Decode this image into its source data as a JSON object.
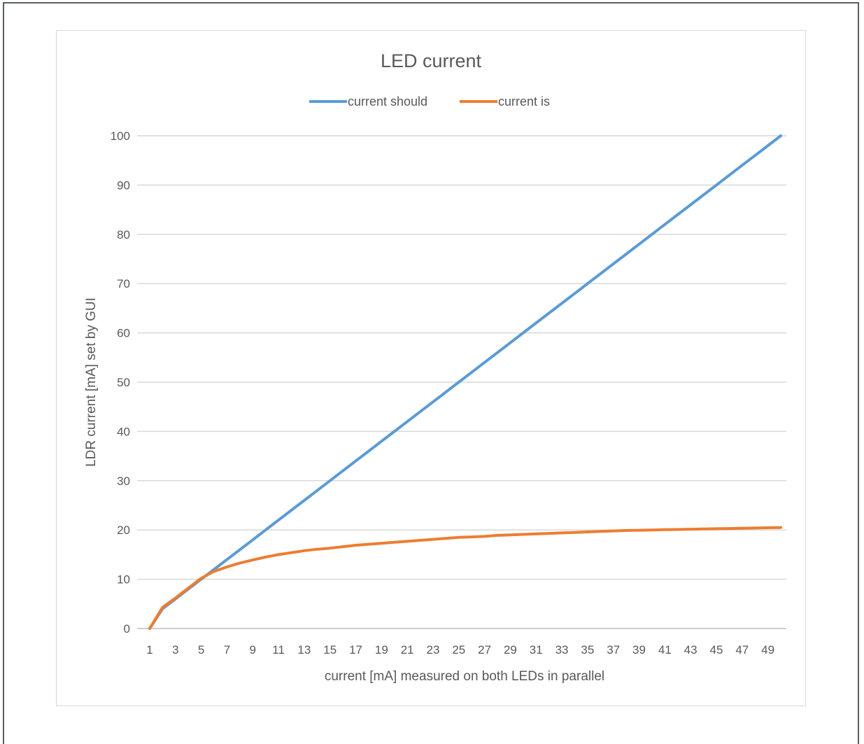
{
  "chart_data": {
    "type": "line",
    "title": "LED current",
    "xlabel": "current [mA] measured on both LEDs in parallel",
    "ylabel": "LDR current [mA] set by GUI",
    "ylim": [
      0,
      100
    ],
    "yticks": [
      0,
      10,
      20,
      30,
      40,
      50,
      60,
      70,
      80,
      90,
      100
    ],
    "x": [
      1,
      2,
      3,
      4,
      5,
      6,
      7,
      8,
      9,
      10,
      11,
      12,
      13,
      14,
      15,
      16,
      17,
      18,
      19,
      20,
      21,
      22,
      23,
      24,
      25,
      26,
      27,
      28,
      29,
      30,
      31,
      32,
      33,
      34,
      35,
      36,
      37,
      38,
      39,
      40,
      41,
      42,
      43,
      44,
      45,
      46,
      47,
      48,
      49,
      50
    ],
    "xtick_labels": [
      1,
      3,
      5,
      7,
      9,
      11,
      13,
      15,
      17,
      19,
      21,
      23,
      25,
      27,
      29,
      31,
      33,
      35,
      37,
      39,
      41,
      43,
      45,
      47,
      49
    ],
    "grid": true,
    "legend_position": "top",
    "series": [
      {
        "name": "current should",
        "color": "#5b9bd5",
        "values": [
          0,
          4,
          6,
          8,
          10,
          12,
          14,
          16,
          18,
          20,
          22,
          24,
          26,
          28,
          30,
          32,
          34,
          36,
          38,
          40,
          42,
          44,
          46,
          48,
          50,
          52,
          54,
          56,
          58,
          60,
          62,
          64,
          66,
          68,
          70,
          72,
          74,
          76,
          78,
          80,
          82,
          84,
          86,
          88,
          90,
          92,
          94,
          96,
          98,
          100
        ]
      },
      {
        "name": "current is",
        "color": "#ed7d31",
        "values": [
          0,
          4.3,
          6.2,
          8.2,
          10.2,
          11.6,
          12.5,
          13.3,
          13.9,
          14.5,
          15.0,
          15.4,
          15.8,
          16.1,
          16.3,
          16.6,
          16.9,
          17.1,
          17.3,
          17.5,
          17.7,
          17.9,
          18.1,
          18.3,
          18.5,
          18.6,
          18.7,
          18.9,
          19.0,
          19.1,
          19.2,
          19.3,
          19.4,
          19.5,
          19.6,
          19.7,
          19.8,
          19.9,
          19.95,
          20.0,
          20.05,
          20.1,
          20.15,
          20.2,
          20.25,
          20.3,
          20.35,
          20.4,
          20.45,
          20.5
        ]
      }
    ]
  }
}
